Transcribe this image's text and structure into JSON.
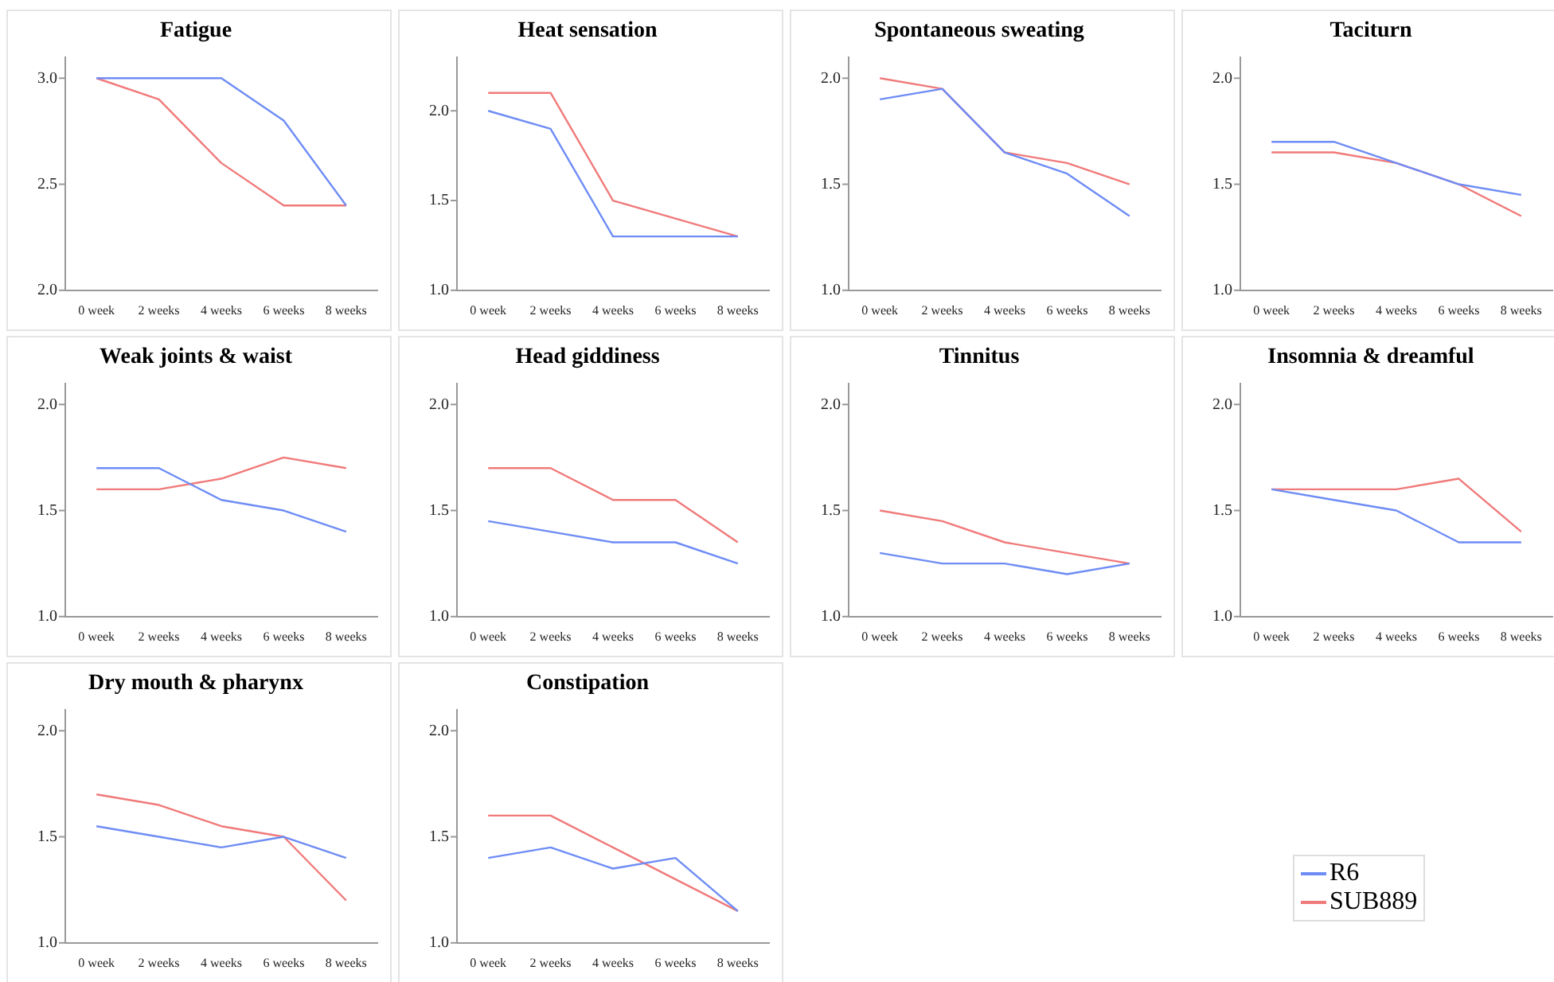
{
  "chart_data": [
    {
      "type": "line",
      "title": "Fatigue",
      "categories": [
        "0 week",
        "2 weeks",
        "4 weeks",
        "6 weeks",
        "8 weeks"
      ],
      "ylim": [
        2,
        3.1
      ],
      "yticks": [
        {
          "value": 2,
          "label": "2.0"
        },
        {
          "value": 2.5,
          "label": "2.5"
        },
        {
          "value": 3,
          "label": "3.0"
        }
      ],
      "grid": false,
      "legend": "bottom right",
      "series": [
        {
          "name": "R6",
          "color": "#6e8cf5",
          "values": [
            3.0,
            3.0,
            3.0,
            2.8,
            2.4
          ]
        },
        {
          "name": "SUB889",
          "color": "#f07a7a",
          "values": [
            3.0,
            2.9,
            2.6,
            2.4,
            2.4
          ]
        }
      ]
    },
    {
      "type": "line",
      "title": "Heat sensation",
      "categories": [
        "0 week",
        "2 weeks",
        "4 weeks",
        "6 weeks",
        "8 weeks"
      ],
      "ylim": [
        1,
        2.3
      ],
      "yticks": [
        {
          "value": 1,
          "label": "1.0"
        },
        {
          "value": 1.5,
          "label": "1.5"
        },
        {
          "value": 2,
          "label": "2.0"
        }
      ],
      "grid": false,
      "series": [
        {
          "color": "#6e8cf5",
          "values": [
            2.0,
            1.9,
            1.3,
            1.3,
            1.3
          ]
        },
        {
          "color": "#f07a7a",
          "values": [
            2.1,
            2.1,
            1.5,
            1.4,
            1.3
          ]
        }
      ]
    },
    {
      "type": "line",
      "title": "Spontaneous sweating",
      "categories": [
        "0 week",
        "2 weeks",
        "4 weeks",
        "6 weeks",
        "8 weeks"
      ],
      "ylim": [
        1,
        2.1
      ],
      "yticks": [
        {
          "value": 1,
          "label": "1.0"
        },
        {
          "value": 1.5,
          "label": "1.5"
        },
        {
          "value": 2,
          "label": "2.0"
        }
      ],
      "grid": false,
      "series": [
        {
          "color": "#6e8cf5",
          "values": [
            1.9,
            1.95,
            1.65,
            1.55,
            1.35
          ]
        },
        {
          "color": "#f07a7a",
          "values": [
            2.0,
            1.95,
            1.65,
            1.6,
            1.5
          ]
        }
      ]
    },
    {
      "type": "line",
      "title": "Taciturn",
      "categories": [
        "0 week",
        "2 weeks",
        "4 weeks",
        "6 weeks",
        "8 weeks"
      ],
      "ylim": [
        1,
        2.1
      ],
      "yticks": [
        {
          "value": 1,
          "label": "1.0"
        },
        {
          "value": 1.5,
          "label": "1.5"
        },
        {
          "value": 2,
          "label": "2.0"
        }
      ],
      "grid": false,
      "series": [
        {
          "color": "#6e8cf5",
          "values": [
            1.7,
            1.7,
            1.6,
            1.5,
            1.45
          ]
        },
        {
          "color": "#f07a7a",
          "values": [
            1.65,
            1.65,
            1.6,
            1.5,
            1.35
          ]
        }
      ]
    },
    {
      "type": "line",
      "title": "Weak joints & waist",
      "categories": [
        "0 week",
        "2 weeks",
        "4 weeks",
        "6 weeks",
        "8 weeks"
      ],
      "ylim": [
        1,
        2.1
      ],
      "yticks": [
        {
          "value": 1,
          "label": "1.0"
        },
        {
          "value": 1.5,
          "label": "1.5"
        },
        {
          "value": 2,
          "label": "2.0"
        }
      ],
      "grid": false,
      "series": [
        {
          "color": "#6e8cf5",
          "values": [
            1.7,
            1.7,
            1.55,
            1.5,
            1.4
          ]
        },
        {
          "color": "#f07a7a",
          "values": [
            1.6,
            1.6,
            1.65,
            1.75,
            1.7
          ]
        }
      ]
    },
    {
      "type": "line",
      "title": "Head giddiness",
      "categories": [
        "0 week",
        "2 weeks",
        "4 weeks",
        "6 weeks",
        "8 weeks"
      ],
      "ylim": [
        1,
        2.1
      ],
      "yticks": [
        {
          "value": 1,
          "label": "1.0"
        },
        {
          "value": 1.5,
          "label": "1.5"
        },
        {
          "value": 2,
          "label": "2.0"
        }
      ],
      "grid": false,
      "series": [
        {
          "color": "#6e8cf5",
          "values": [
            1.45,
            1.4,
            1.35,
            1.35,
            1.25
          ]
        },
        {
          "color": "#f07a7a",
          "values": [
            1.7,
            1.7,
            1.55,
            1.55,
            1.35
          ]
        }
      ]
    },
    {
      "type": "line",
      "title": "Tinnitus",
      "categories": [
        "0 week",
        "2 weeks",
        "4 weeks",
        "6 weeks",
        "8 weeks"
      ],
      "ylim": [
        1,
        2.1
      ],
      "yticks": [
        {
          "value": 1,
          "label": "1.0"
        },
        {
          "value": 1.5,
          "label": "1.5"
        },
        {
          "value": 2,
          "label": "2.0"
        }
      ],
      "grid": false,
      "series": [
        {
          "color": "#6e8cf5",
          "values": [
            1.3,
            1.25,
            1.25,
            1.2,
            1.25
          ]
        },
        {
          "color": "#f07a7a",
          "values": [
            1.5,
            1.45,
            1.35,
            1.3,
            1.25
          ]
        }
      ]
    },
    {
      "type": "line",
      "title": "Insomnia & dreamful",
      "categories": [
        "0 week",
        "2 weeks",
        "4 weeks",
        "6 weeks",
        "8 weeks"
      ],
      "ylim": [
        1,
        2.1
      ],
      "yticks": [
        {
          "value": 1,
          "label": "1.0"
        },
        {
          "value": 1.5,
          "label": "1.5"
        },
        {
          "value": 2,
          "label": "2.0"
        }
      ],
      "grid": false,
      "series": [
        {
          "color": "#6e8cf5",
          "values": [
            1.6,
            1.55,
            1.5,
            1.35,
            1.35
          ]
        },
        {
          "color": "#f07a7a",
          "values": [
            1.6,
            1.6,
            1.6,
            1.65,
            1.4
          ]
        }
      ]
    },
    {
      "type": "line",
      "title": "Dry mouth & pharynx",
      "categories": [
        "0 week",
        "2 weeks",
        "4 weeks",
        "6 weeks",
        "8 weeks"
      ],
      "ylim": [
        1,
        2.1
      ],
      "yticks": [
        {
          "value": 1,
          "label": "1.0"
        },
        {
          "value": 1.5,
          "label": "1.5"
        },
        {
          "value": 2,
          "label": "2.0"
        }
      ],
      "grid": false,
      "series": [
        {
          "color": "#6e8cf5",
          "values": [
            1.55,
            1.5,
            1.45,
            1.5,
            1.4
          ]
        },
        {
          "color": "#f07a7a",
          "values": [
            1.7,
            1.65,
            1.55,
            1.5,
            1.2
          ]
        }
      ]
    },
    {
      "type": "line",
      "title": "Constipation",
      "categories": [
        "0 week",
        "2 weeks",
        "4 weeks",
        "6 weeks",
        "8 weeks"
      ],
      "ylim": [
        1,
        2.1
      ],
      "yticks": [
        {
          "value": 1,
          "label": "1.0"
        },
        {
          "value": 1.5,
          "label": "1.5"
        },
        {
          "value": 2,
          "label": "2.0"
        }
      ],
      "grid": false,
      "series": [
        {
          "color": "#6e8cf5",
          "values": [
            1.4,
            1.45,
            1.35,
            1.4,
            1.15
          ]
        },
        {
          "color": "#f07a7a",
          "values": [
            1.6,
            1.6,
            1.45,
            1.3,
            1.15
          ]
        }
      ]
    }
  ]
}
